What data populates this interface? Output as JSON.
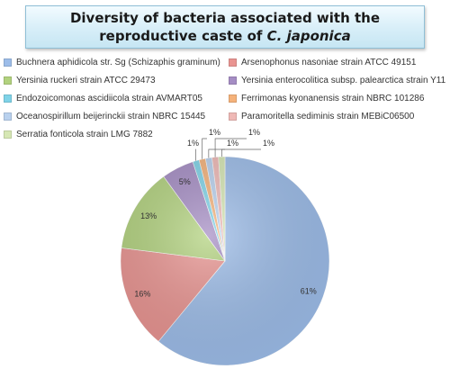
{
  "chart_data": {
    "type": "pie",
    "title_main": "Diversity of bacteria associated with the reproductive caste of ",
    "title_italic": "C. japonica",
    "legend_placement": "top",
    "series": [
      {
        "name": "Buchnera aphidicola str. Sg (Schizaphis graminum)",
        "value": 61,
        "label": "61%",
        "color": "#9dbde9"
      },
      {
        "name": "Arsenophonus nasoniae strain ATCC 49151",
        "value": 16,
        "label": "16%",
        "color": "#e99491"
      },
      {
        "name": "Yersinia ruckeri strain ATCC 29473",
        "value": 13,
        "label": "13%",
        "color": "#b2d27e"
      },
      {
        "name": "Yersinia enterocolitica subsp. palearctica strain Y11",
        "value": 5,
        "label": "5%",
        "color": "#a58dc4"
      },
      {
        "name": "Endozoicomonas ascidiicola strain AVMART05",
        "value": 1,
        "label": "1%",
        "color": "#7fd3e8"
      },
      {
        "name": "Ferrimonas kyonanensis strain NBRC 101286",
        "value": 1,
        "label": "1%",
        "color": "#f5b27a"
      },
      {
        "name": "Oceanospirillum beijerinckii strain NBRC 15445",
        "value": 1,
        "label": "1%",
        "color": "#b9d1ee"
      },
      {
        "name": "Paramoritella sediminis strain MEBiC06500",
        "value": 1,
        "label": "1%",
        "color": "#efb9b6"
      },
      {
        "name": "Serratia fonticola strain LMG 7882",
        "value": 1,
        "label": "1%",
        "color": "#d6e7b4"
      }
    ]
  }
}
